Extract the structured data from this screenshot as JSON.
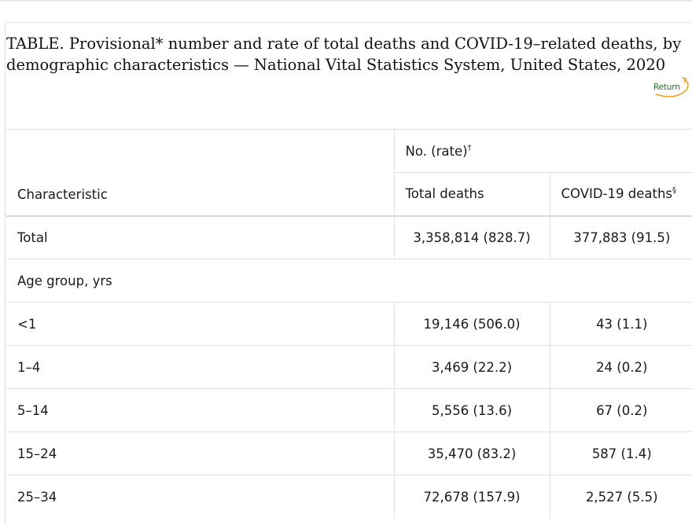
{
  "caption": "TABLE. Provisional* number and rate of total deaths and COVID-19–related deaths, by demographic characteristics — National Vital Statistics System, United States, 2020",
  "return_link": {
    "label": "Return",
    "icon": "curved-arrow-icon",
    "color": "#2c6f2a",
    "arrow_color": "#f0a020"
  },
  "table": {
    "header": {
      "group_label": "No. (rate)",
      "group_mark": "†",
      "characteristic": "Characteristic",
      "total_deaths": "Total deaths",
      "covid_deaths": "COVID-19 deaths",
      "covid_mark": "§"
    },
    "rows": [
      {
        "label": "Total",
        "total": "3,358,814 (828.7)",
        "covid": "377,883 (91.5)"
      },
      {
        "label": "Age group, yrs",
        "section": true
      },
      {
        "label": "<1",
        "total": "19,146 (506.0)",
        "covid": "43 (1.1)"
      },
      {
        "label": "1–4",
        "total": "3,469 (22.2)",
        "covid": "24 (0.2)"
      },
      {
        "label": "5–14",
        "total": "5,556 (13.6)",
        "covid": "67 (0.2)"
      },
      {
        "label": "15–24",
        "total": "35,470 (83.2)",
        "covid": "587 (1.4)"
      },
      {
        "label": "25–34",
        "total": "72,678 (157.9)",
        "covid": "2,527 (5.5)"
      }
    ]
  }
}
